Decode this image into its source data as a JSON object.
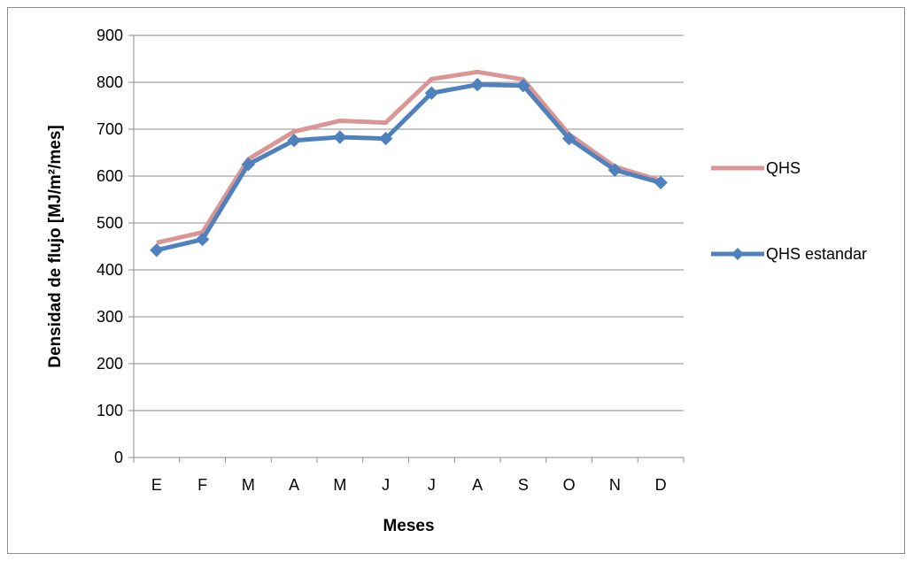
{
  "chart_data": {
    "type": "line",
    "title": "",
    "xlabel": "Meses",
    "ylabel": "Densidad de flujo [MJ/m²/mes]",
    "categories": [
      "E",
      "F",
      "M",
      "A",
      "M",
      "J",
      "J",
      "A",
      "S",
      "O",
      "N",
      "D"
    ],
    "ylim": [
      0,
      900
    ],
    "yticks": [
      0,
      100,
      200,
      300,
      400,
      500,
      600,
      700,
      800,
      900
    ],
    "grid": true,
    "legend_position": "right",
    "series": [
      {
        "name": "QHS",
        "color": "#d99694",
        "marker": "none",
        "values": [
          458,
          480,
          636,
          695,
          718,
          714,
          807,
          822,
          806,
          689,
          620,
          590
        ]
      },
      {
        "name": "QHS estandar",
        "color": "#4f81bd",
        "marker": "diamond",
        "values": [
          442,
          465,
          625,
          676,
          683,
          680,
          777,
          795,
          793,
          680,
          613,
          586
        ]
      }
    ]
  }
}
